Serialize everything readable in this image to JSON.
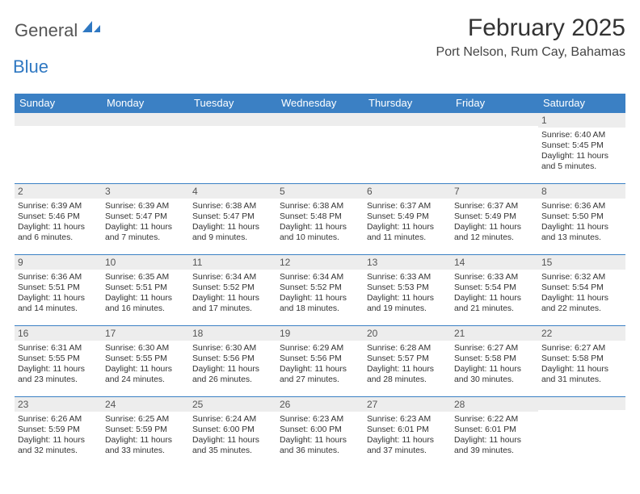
{
  "logo": {
    "word1": "General",
    "word2": "Blue"
  },
  "title": "February 2025",
  "location": "Port Nelson, Rum Cay, Bahamas",
  "colors": {
    "header_bg": "#3b80c4",
    "header_text": "#ffffff",
    "row_divider": "#3b80c4",
    "band_bg": "#ededed",
    "body_text": "#333333",
    "logo_gray": "#555555",
    "logo_blue": "#2f78c2",
    "page_bg": "#ffffff"
  },
  "fonts": {
    "title_size_pt": 22,
    "location_size_pt": 12,
    "header_size_pt": 10,
    "body_size_pt": 8
  },
  "day_labels": [
    "Sunday",
    "Monday",
    "Tuesday",
    "Wednesday",
    "Thursday",
    "Friday",
    "Saturday"
  ],
  "weeks": [
    [
      {
        "n": "",
        "sunrise": "",
        "sunset": "",
        "daylight": ""
      },
      {
        "n": "",
        "sunrise": "",
        "sunset": "",
        "daylight": ""
      },
      {
        "n": "",
        "sunrise": "",
        "sunset": "",
        "daylight": ""
      },
      {
        "n": "",
        "sunrise": "",
        "sunset": "",
        "daylight": ""
      },
      {
        "n": "",
        "sunrise": "",
        "sunset": "",
        "daylight": ""
      },
      {
        "n": "",
        "sunrise": "",
        "sunset": "",
        "daylight": ""
      },
      {
        "n": "1",
        "sunrise": "Sunrise: 6:40 AM",
        "sunset": "Sunset: 5:45 PM",
        "daylight": "Daylight: 11 hours and 5 minutes."
      }
    ],
    [
      {
        "n": "2",
        "sunrise": "Sunrise: 6:39 AM",
        "sunset": "Sunset: 5:46 PM",
        "daylight": "Daylight: 11 hours and 6 minutes."
      },
      {
        "n": "3",
        "sunrise": "Sunrise: 6:39 AM",
        "sunset": "Sunset: 5:47 PM",
        "daylight": "Daylight: 11 hours and 7 minutes."
      },
      {
        "n": "4",
        "sunrise": "Sunrise: 6:38 AM",
        "sunset": "Sunset: 5:47 PM",
        "daylight": "Daylight: 11 hours and 9 minutes."
      },
      {
        "n": "5",
        "sunrise": "Sunrise: 6:38 AM",
        "sunset": "Sunset: 5:48 PM",
        "daylight": "Daylight: 11 hours and 10 minutes."
      },
      {
        "n": "6",
        "sunrise": "Sunrise: 6:37 AM",
        "sunset": "Sunset: 5:49 PM",
        "daylight": "Daylight: 11 hours and 11 minutes."
      },
      {
        "n": "7",
        "sunrise": "Sunrise: 6:37 AM",
        "sunset": "Sunset: 5:49 PM",
        "daylight": "Daylight: 11 hours and 12 minutes."
      },
      {
        "n": "8",
        "sunrise": "Sunrise: 6:36 AM",
        "sunset": "Sunset: 5:50 PM",
        "daylight": "Daylight: 11 hours and 13 minutes."
      }
    ],
    [
      {
        "n": "9",
        "sunrise": "Sunrise: 6:36 AM",
        "sunset": "Sunset: 5:51 PM",
        "daylight": "Daylight: 11 hours and 14 minutes."
      },
      {
        "n": "10",
        "sunrise": "Sunrise: 6:35 AM",
        "sunset": "Sunset: 5:51 PM",
        "daylight": "Daylight: 11 hours and 16 minutes."
      },
      {
        "n": "11",
        "sunrise": "Sunrise: 6:34 AM",
        "sunset": "Sunset: 5:52 PM",
        "daylight": "Daylight: 11 hours and 17 minutes."
      },
      {
        "n": "12",
        "sunrise": "Sunrise: 6:34 AM",
        "sunset": "Sunset: 5:52 PM",
        "daylight": "Daylight: 11 hours and 18 minutes."
      },
      {
        "n": "13",
        "sunrise": "Sunrise: 6:33 AM",
        "sunset": "Sunset: 5:53 PM",
        "daylight": "Daylight: 11 hours and 19 minutes."
      },
      {
        "n": "14",
        "sunrise": "Sunrise: 6:33 AM",
        "sunset": "Sunset: 5:54 PM",
        "daylight": "Daylight: 11 hours and 21 minutes."
      },
      {
        "n": "15",
        "sunrise": "Sunrise: 6:32 AM",
        "sunset": "Sunset: 5:54 PM",
        "daylight": "Daylight: 11 hours and 22 minutes."
      }
    ],
    [
      {
        "n": "16",
        "sunrise": "Sunrise: 6:31 AM",
        "sunset": "Sunset: 5:55 PM",
        "daylight": "Daylight: 11 hours and 23 minutes."
      },
      {
        "n": "17",
        "sunrise": "Sunrise: 6:30 AM",
        "sunset": "Sunset: 5:55 PM",
        "daylight": "Daylight: 11 hours and 24 minutes."
      },
      {
        "n": "18",
        "sunrise": "Sunrise: 6:30 AM",
        "sunset": "Sunset: 5:56 PM",
        "daylight": "Daylight: 11 hours and 26 minutes."
      },
      {
        "n": "19",
        "sunrise": "Sunrise: 6:29 AM",
        "sunset": "Sunset: 5:56 PM",
        "daylight": "Daylight: 11 hours and 27 minutes."
      },
      {
        "n": "20",
        "sunrise": "Sunrise: 6:28 AM",
        "sunset": "Sunset: 5:57 PM",
        "daylight": "Daylight: 11 hours and 28 minutes."
      },
      {
        "n": "21",
        "sunrise": "Sunrise: 6:27 AM",
        "sunset": "Sunset: 5:58 PM",
        "daylight": "Daylight: 11 hours and 30 minutes."
      },
      {
        "n": "22",
        "sunrise": "Sunrise: 6:27 AM",
        "sunset": "Sunset: 5:58 PM",
        "daylight": "Daylight: 11 hours and 31 minutes."
      }
    ],
    [
      {
        "n": "23",
        "sunrise": "Sunrise: 6:26 AM",
        "sunset": "Sunset: 5:59 PM",
        "daylight": "Daylight: 11 hours and 32 minutes."
      },
      {
        "n": "24",
        "sunrise": "Sunrise: 6:25 AM",
        "sunset": "Sunset: 5:59 PM",
        "daylight": "Daylight: 11 hours and 33 minutes."
      },
      {
        "n": "25",
        "sunrise": "Sunrise: 6:24 AM",
        "sunset": "Sunset: 6:00 PM",
        "daylight": "Daylight: 11 hours and 35 minutes."
      },
      {
        "n": "26",
        "sunrise": "Sunrise: 6:23 AM",
        "sunset": "Sunset: 6:00 PM",
        "daylight": "Daylight: 11 hours and 36 minutes."
      },
      {
        "n": "27",
        "sunrise": "Sunrise: 6:23 AM",
        "sunset": "Sunset: 6:01 PM",
        "daylight": "Daylight: 11 hours and 37 minutes."
      },
      {
        "n": "28",
        "sunrise": "Sunrise: 6:22 AM",
        "sunset": "Sunset: 6:01 PM",
        "daylight": "Daylight: 11 hours and 39 minutes."
      },
      {
        "n": "",
        "sunrise": "",
        "sunset": "",
        "daylight": ""
      }
    ]
  ]
}
